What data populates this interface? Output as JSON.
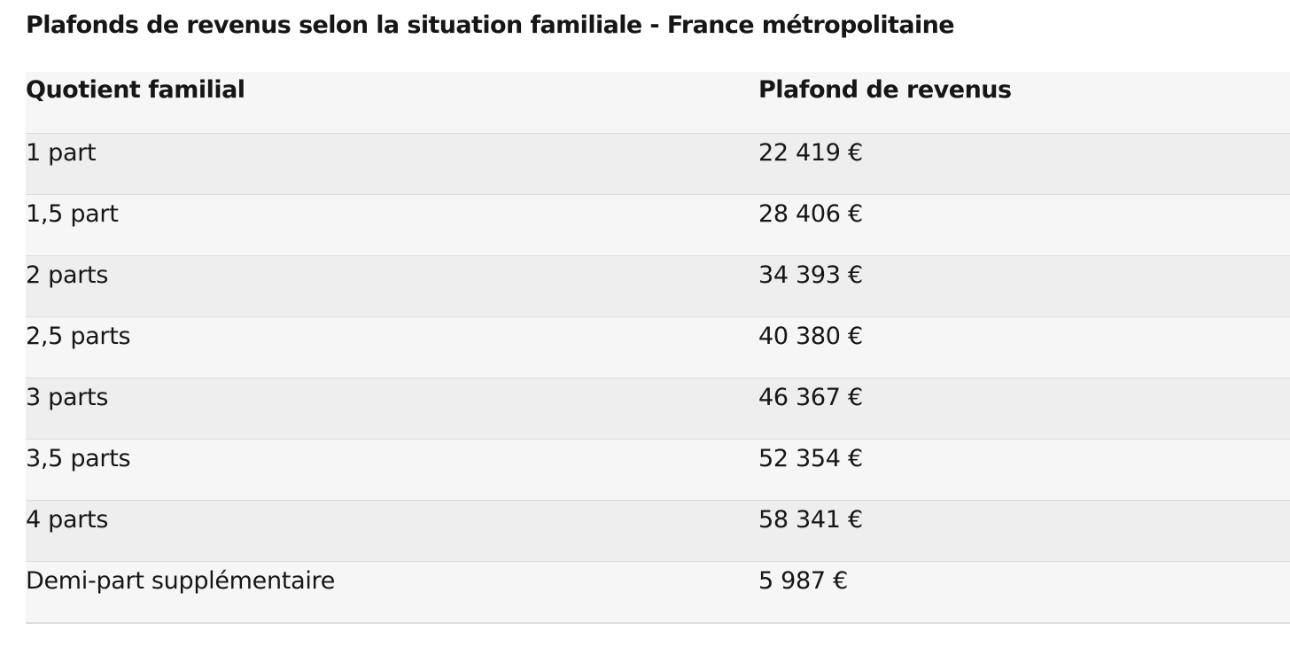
{
  "caption": "Plafonds de revenus selon la situation familiale - France métropolitaine",
  "table": {
    "headers": [
      "Quotient familial",
      "Plafond de revenus"
    ],
    "rows": [
      [
        "1 part",
        "22 419 €"
      ],
      [
        "1,5 part",
        "28 406 €"
      ],
      [
        "2 parts",
        "34 393 €"
      ],
      [
        "2,5 parts",
        "40 380 €"
      ],
      [
        "3 parts",
        "46 367 €"
      ],
      [
        "3,5 parts",
        "52 354 €"
      ],
      [
        "4 parts",
        "58 341 €"
      ],
      [
        "Demi-part supplémentaire",
        "5 987 €"
      ]
    ]
  }
}
